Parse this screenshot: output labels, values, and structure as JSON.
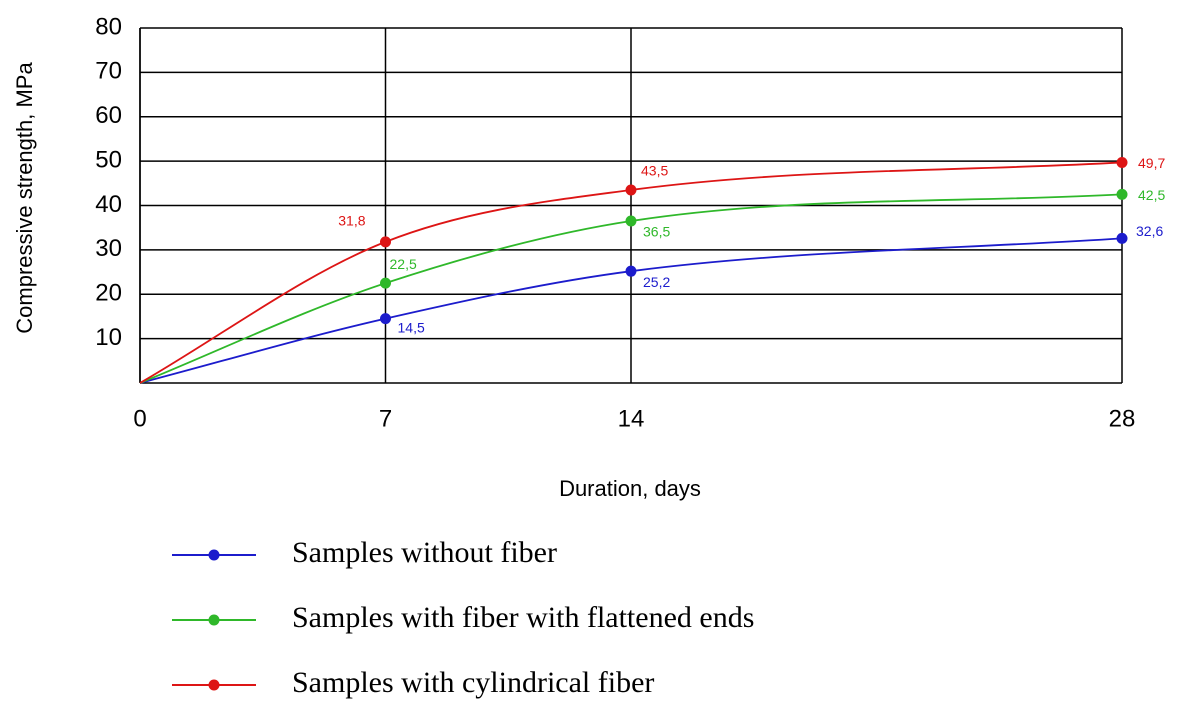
{
  "chart_data": {
    "type": "line",
    "x_label": "Duration, days",
    "y_label": "Compressive strength, MPa",
    "x": [
      0,
      7,
      14,
      28
    ],
    "xlim": [
      0,
      28
    ],
    "xticks": [
      0,
      7,
      14,
      28
    ],
    "ylim": [
      0,
      80
    ],
    "yticks": [
      10,
      20,
      30,
      40,
      50,
      60,
      70,
      80
    ],
    "grid": true,
    "legend": "bottom",
    "series": [
      {
        "name": "Samples without fiber",
        "color": "#1c1ccc",
        "values": [
          0,
          14.5,
          25.2,
          32.6
        ],
        "value_labels": [
          null,
          "14,5",
          "25,2",
          "32,6"
        ]
      },
      {
        "name": "Samples with fiber with flattened ends",
        "color": "#2fb82a",
        "values": [
          0,
          22.5,
          36.5,
          42.5
        ],
        "value_labels": [
          null,
          "22,5",
          "36,5",
          "42,5"
        ]
      },
      {
        "name": "Samples  with cylindrical fiber",
        "color": "#dd1515",
        "values": [
          0,
          31.8,
          43.5,
          49.7
        ],
        "value_labels": [
          null,
          "31,8",
          "43,5",
          "49,7"
        ]
      }
    ]
  }
}
